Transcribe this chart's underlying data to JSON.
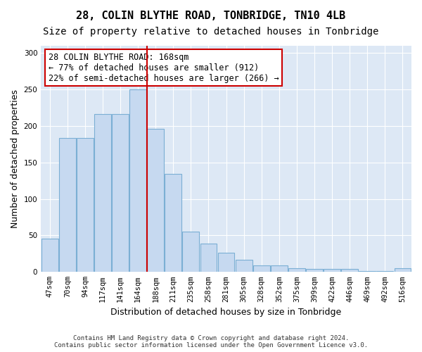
{
  "title": "28, COLIN BLYTHE ROAD, TONBRIDGE, TN10 4LB",
  "subtitle": "Size of property relative to detached houses in Tonbridge",
  "xlabel": "Distribution of detached houses by size in Tonbridge",
  "ylabel": "Number of detached properties",
  "categories": [
    "47sqm",
    "70sqm",
    "94sqm",
    "117sqm",
    "141sqm",
    "164sqm",
    "188sqm",
    "211sqm",
    "235sqm",
    "258sqm",
    "281sqm",
    "305sqm",
    "328sqm",
    "352sqm",
    "375sqm",
    "399sqm",
    "422sqm",
    "446sqm",
    "469sqm",
    "492sqm",
    "516sqm"
  ],
  "bar_heights": [
    46,
    184,
    184,
    216,
    216,
    250,
    196,
    134,
    55,
    39,
    26,
    17,
    9,
    9,
    5,
    4,
    4,
    4,
    1,
    1,
    5
  ],
  "bar_color": "#c6d9f0",
  "bar_edge_color": "#7bafd4",
  "vline_color": "#cc0000",
  "vline_index": 5,
  "annotation_text": "28 COLIN BLYTHE ROAD: 168sqm\n← 77% of detached houses are smaller (912)\n22% of semi-detached houses are larger (266) →",
  "annotation_box_color": "white",
  "annotation_box_edge_color": "#cc0000",
  "ylim": [
    0,
    310
  ],
  "yticks": [
    0,
    50,
    100,
    150,
    200,
    250,
    300
  ],
  "bg_color": "#dde8f5",
  "footer_text": "Contains HM Land Registry data © Crown copyright and database right 2024.\nContains public sector information licensed under the Open Government Licence v3.0.",
  "title_fontsize": 11,
  "subtitle_fontsize": 10,
  "xlabel_fontsize": 9,
  "ylabel_fontsize": 9,
  "tick_fontsize": 7.5,
  "annotation_fontsize": 8.5,
  "footer_fontsize": 6.5
}
